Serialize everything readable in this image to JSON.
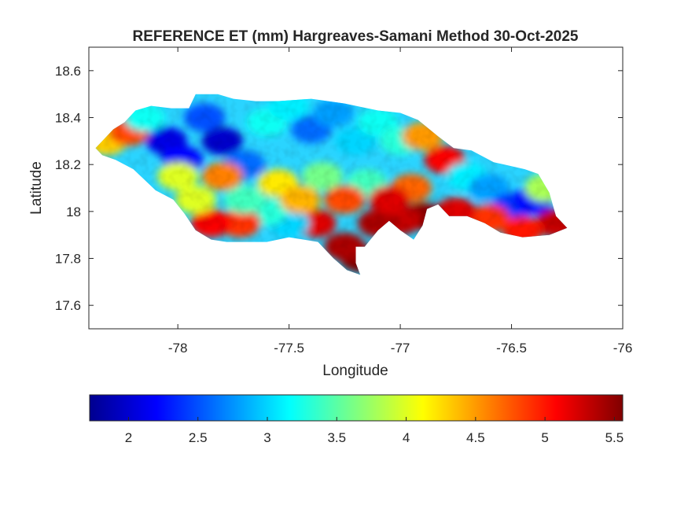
{
  "chart_data": {
    "type": "heatmap",
    "title": "REFERENCE ET (mm) Hargreaves-Samani Method  30-Oct-2025",
    "xlabel": "Longitude",
    "ylabel": "Latitude",
    "xlim": [
      -78.4,
      -76.0
    ],
    "ylim": [
      17.5,
      18.7
    ],
    "x_ticks": [
      -78,
      -77.5,
      -77,
      -76.5,
      -76
    ],
    "x_tick_labels": [
      "-78",
      "-77.5",
      "-77",
      "-76.5",
      "-76"
    ],
    "y_ticks": [
      17.6,
      17.8,
      18,
      18.2,
      18.4,
      18.6
    ],
    "y_tick_labels": [
      "17.6",
      "17.8",
      "18",
      "18.2",
      "18.4",
      "18.6"
    ],
    "grid": false,
    "colormap": "jet",
    "colorbar": {
      "orientation": "horizontal",
      "placement": "below",
      "range": [
        1.72,
        5.56
      ],
      "ticks": [
        2,
        2.5,
        3,
        3.5,
        4,
        4.5,
        5,
        5.5
      ],
      "tick_labels": [
        "2",
        "2.5",
        "3",
        "3.5",
        "4",
        "4.5",
        "5",
        "5.5"
      ]
    },
    "region_outline_lonlat": [
      [
        -78.37,
        18.27
      ],
      [
        -78.33,
        18.31
      ],
      [
        -78.29,
        18.35
      ],
      [
        -78.24,
        18.38
      ],
      [
        -78.19,
        18.43
      ],
      [
        -78.12,
        18.45
      ],
      [
        -78.03,
        18.44
      ],
      [
        -77.95,
        18.44
      ],
      [
        -77.92,
        18.5
      ],
      [
        -77.82,
        18.5
      ],
      [
        -77.75,
        18.48
      ],
      [
        -77.65,
        18.47
      ],
      [
        -77.55,
        18.47
      ],
      [
        -77.4,
        18.48
      ],
      [
        -77.25,
        18.46
      ],
      [
        -77.1,
        18.43
      ],
      [
        -77.0,
        18.42
      ],
      [
        -76.92,
        18.39
      ],
      [
        -76.83,
        18.32
      ],
      [
        -76.76,
        18.27
      ],
      [
        -76.68,
        18.26
      ],
      [
        -76.58,
        18.21
      ],
      [
        -76.44,
        18.18
      ],
      [
        -76.38,
        18.16
      ],
      [
        -76.33,
        18.08
      ],
      [
        -76.3,
        17.98
      ],
      [
        -76.25,
        17.93
      ],
      [
        -76.33,
        17.9
      ],
      [
        -76.45,
        17.89
      ],
      [
        -76.55,
        17.91
      ],
      [
        -76.62,
        17.95
      ],
      [
        -76.7,
        17.98
      ],
      [
        -76.78,
        17.98
      ],
      [
        -76.83,
        18.03
      ],
      [
        -76.88,
        18.01
      ],
      [
        -76.9,
        17.94
      ],
      [
        -76.94,
        17.88
      ],
      [
        -77.0,
        17.92
      ],
      [
        -77.05,
        17.96
      ],
      [
        -77.1,
        17.92
      ],
      [
        -77.16,
        17.85
      ],
      [
        -77.2,
        17.85
      ],
      [
        -77.2,
        17.78
      ],
      [
        -77.18,
        17.73
      ],
      [
        -77.24,
        17.75
      ],
      [
        -77.3,
        17.8
      ],
      [
        -77.37,
        17.87
      ],
      [
        -77.5,
        17.89
      ],
      [
        -77.6,
        17.87
      ],
      [
        -77.7,
        17.87
      ],
      [
        -77.78,
        17.87
      ],
      [
        -77.85,
        17.88
      ],
      [
        -77.92,
        17.92
      ],
      [
        -77.97,
        17.99
      ],
      [
        -78.02,
        18.05
      ],
      [
        -78.1,
        18.09
      ],
      [
        -78.2,
        18.18
      ],
      [
        -78.28,
        18.22
      ],
      [
        -78.34,
        18.24
      ]
    ],
    "value_field_samples_lonlat": [
      [
        -78.32,
        18.3,
        4.3
      ],
      [
        -78.22,
        18.34,
        4.8
      ],
      [
        -78.15,
        18.4,
        3.2
      ],
      [
        -78.05,
        18.3,
        2.1
      ],
      [
        -77.98,
        18.22,
        2.2
      ],
      [
        -77.88,
        18.4,
        2.5
      ],
      [
        -77.8,
        18.3,
        2.0
      ],
      [
        -77.7,
        18.2,
        2.6
      ],
      [
        -77.6,
        18.38,
        3.2
      ],
      [
        -77.5,
        18.45,
        3.1
      ],
      [
        -77.4,
        18.35,
        2.6
      ],
      [
        -77.3,
        18.42,
        2.8
      ],
      [
        -77.2,
        18.3,
        3.0
      ],
      [
        -77.1,
        18.38,
        3.2
      ],
      [
        -77.0,
        18.3,
        3.3
      ],
      [
        -76.9,
        18.32,
        4.5
      ],
      [
        -76.8,
        18.22,
        5.1
      ],
      [
        -76.7,
        18.15,
        3.1
      ],
      [
        -76.6,
        18.1,
        2.8
      ],
      [
        -76.5,
        18.02,
        2.4
      ],
      [
        -76.4,
        18.05,
        2.2
      ],
      [
        -76.35,
        18.1,
        3.8
      ],
      [
        -76.3,
        17.95,
        5.3
      ],
      [
        -76.45,
        17.92,
        5.0
      ],
      [
        -76.6,
        17.97,
        4.9
      ],
      [
        -76.75,
        18.0,
        5.2
      ],
      [
        -76.9,
        17.98,
        5.5
      ],
      [
        -77.0,
        17.96,
        5.3
      ],
      [
        -77.1,
        17.95,
        5.4
      ],
      [
        -77.18,
        17.8,
        5.6
      ],
      [
        -77.25,
        17.85,
        5.4
      ],
      [
        -77.38,
        17.95,
        5.2
      ],
      [
        -77.5,
        17.95,
        3.0
      ],
      [
        -77.6,
        18.0,
        3.3
      ],
      [
        -77.72,
        17.95,
        4.9
      ],
      [
        -77.85,
        17.95,
        5.1
      ],
      [
        -77.92,
        18.05,
        4.0
      ],
      [
        -77.55,
        18.12,
        4.2
      ],
      [
        -77.35,
        18.15,
        3.6
      ],
      [
        -77.15,
        18.12,
        3.4
      ],
      [
        -76.95,
        18.1,
        4.7
      ],
      [
        -77.7,
        18.05,
        3.4
      ],
      [
        -77.45,
        18.05,
        4.4
      ],
      [
        -77.8,
        18.15,
        4.6
      ],
      [
        -78.0,
        18.15,
        4.0
      ],
      [
        -77.25,
        18.05,
        4.8
      ],
      [
        -77.05,
        18.05,
        5.2
      ]
    ]
  }
}
